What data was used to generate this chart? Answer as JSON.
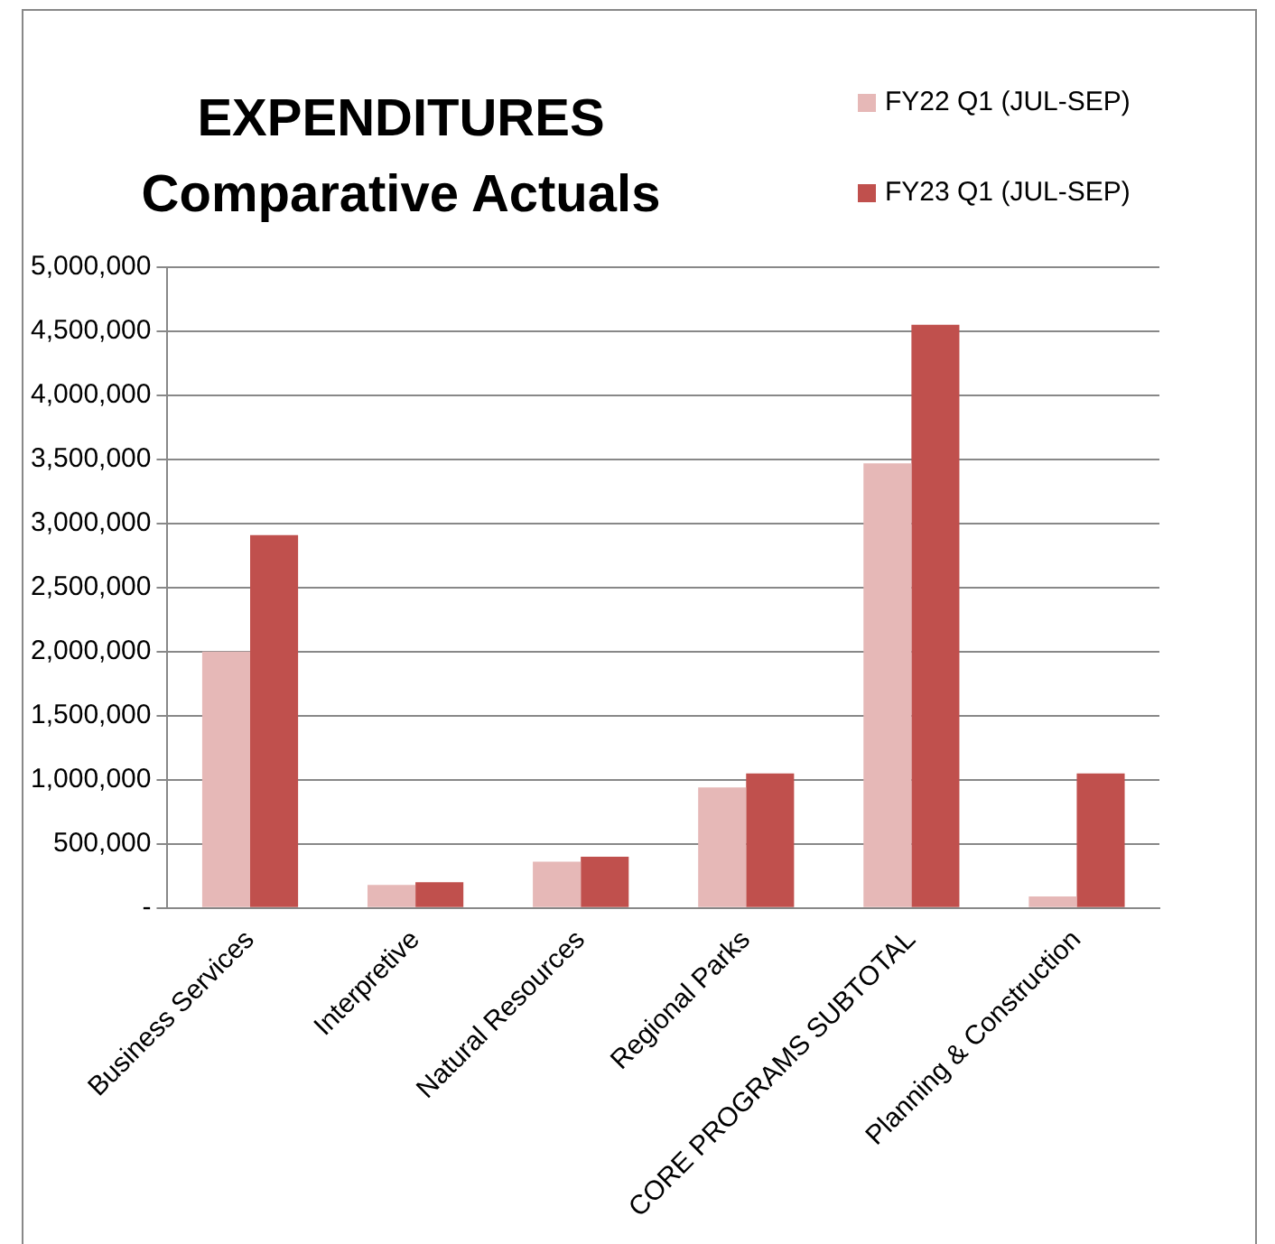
{
  "chart_data": {
    "type": "bar",
    "title": "EXPENDITURES\nComparative Actuals",
    "categories": [
      "Business Services",
      "Interpretive",
      "Natural Resources",
      "Regional Parks",
      "CORE PROGRAMS SUBTOTAL",
      "Planning & Construction"
    ],
    "series": [
      {
        "name": "FY22 Q1 (JUL-SEP)",
        "color": "#e6b8b7",
        "values": [
          2000000,
          180000,
          360000,
          940000,
          3470000,
          90000
        ]
      },
      {
        "name": "FY23 Q1 (JUL-SEP)",
        "color": "#c0504d",
        "values": [
          2910000,
          200000,
          400000,
          1050000,
          4550000,
          1050000
        ]
      }
    ],
    "ylim": [
      0,
      5000000
    ],
    "yticks": [
      {
        "value": 0,
        "label": "-"
      },
      {
        "value": 500000,
        "label": "500,000"
      },
      {
        "value": 1000000,
        "label": "1,000,000"
      },
      {
        "value": 1500000,
        "label": "1,500,000"
      },
      {
        "value": 2000000,
        "label": "2,000,000"
      },
      {
        "value": 2500000,
        "label": "2,500,000"
      },
      {
        "value": 3000000,
        "label": "3,000,000"
      },
      {
        "value": 3500000,
        "label": "3,500,000"
      },
      {
        "value": 4000000,
        "label": "4,000,000"
      },
      {
        "value": 4500000,
        "label": "4,500,000"
      },
      {
        "value": 5000000,
        "label": "5,000,000"
      }
    ],
    "grid": "y",
    "legend": "top right"
  }
}
